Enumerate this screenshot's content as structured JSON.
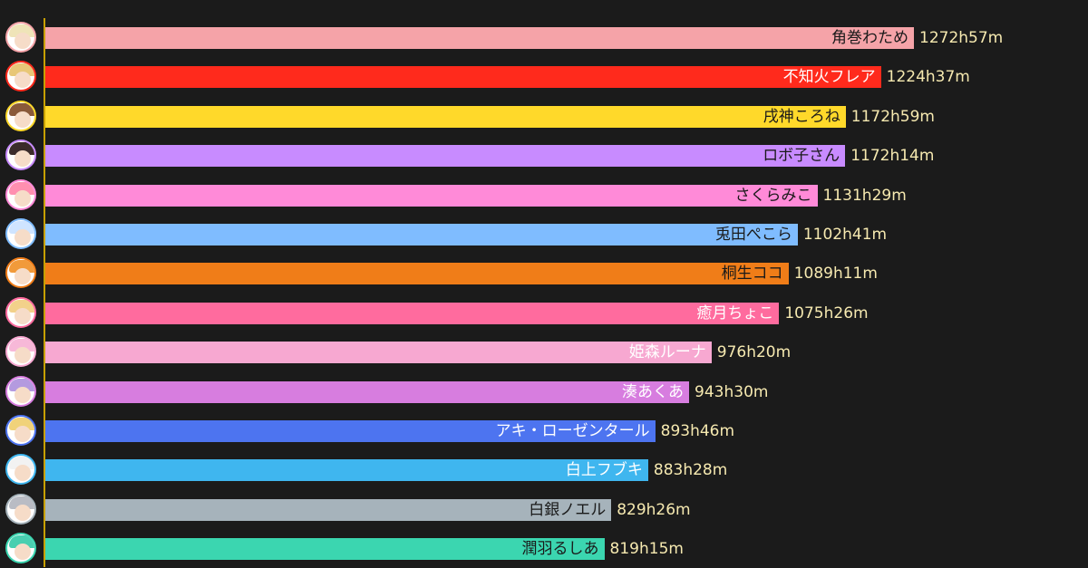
{
  "chart_data": {
    "type": "bar",
    "orientation": "horizontal",
    "value_unit": "hours",
    "items": [
      {
        "name": "角巻わため",
        "value": 1272.95,
        "value_label": "1272h57m",
        "color": "#f5a3a8",
        "label_color": "#1a1a1a",
        "hair": "#efe4b8"
      },
      {
        "name": "不知火フレア",
        "value": 1224.62,
        "value_label": "1224h37m",
        "color": "#ff2a1c",
        "label_color": "#ffffff",
        "hair": "#e8c777"
      },
      {
        "name": "戌神ころね",
        "value": 1172.98,
        "value_label": "1172h59m",
        "color": "#ffd92a",
        "label_color": "#1a1a1a",
        "hair": "#8a5a3a"
      },
      {
        "name": "ロボ子さん",
        "value": 1172.23,
        "value_label": "1172h14m",
        "color": "#c88bff",
        "label_color": "#1a1a1a",
        "hair": "#3b2b2b"
      },
      {
        "name": "さくらみこ",
        "value": 1131.48,
        "value_label": "1131h29m",
        "color": "#ff8ad8",
        "label_color": "#1a1a1a",
        "hair": "#ff8fb0"
      },
      {
        "name": "兎田ぺこら",
        "value": 1102.68,
        "value_label": "1102h41m",
        "color": "#7fbcff",
        "label_color": "#1a1a1a",
        "hair": "#cfe4ff"
      },
      {
        "name": "桐生ココ",
        "value": 1089.18,
        "value_label": "1089h11m",
        "color": "#f07d18",
        "label_color": "#1a1a1a",
        "hair": "#f19a3a"
      },
      {
        "name": "癒月ちょこ",
        "value": 1075.43,
        "value_label": "1075h26m",
        "color": "#ff6b9e",
        "label_color": "#ffffff",
        "hair": "#f2d18a"
      },
      {
        "name": "姫森ルーナ",
        "value": 976.33,
        "value_label": "976h20m",
        "color": "#f7a8d1",
        "label_color": "#ffffff",
        "hair": "#f7b8d8"
      },
      {
        "name": "湊あくあ",
        "value": 943.5,
        "value_label": "943h30m",
        "color": "#d77ddf",
        "label_color": "#ffffff",
        "hair": "#b49adf"
      },
      {
        "name": "アキ・ローゼンタール",
        "value": 893.77,
        "value_label": "893h46m",
        "color": "#4d74f0",
        "label_color": "#ffffff",
        "hair": "#f0d27a"
      },
      {
        "name": "白上フブキ",
        "value": 883.47,
        "value_label": "883h28m",
        "color": "#3fb6ef",
        "label_color": "#ffffff",
        "hair": "#f2f2f2"
      },
      {
        "name": "白銀ノエル",
        "value": 829.43,
        "value_label": "829h26m",
        "color": "#a6b3bb",
        "label_color": "#1a1a1a",
        "hair": "#b9bcc4"
      },
      {
        "name": "潤羽るしあ",
        "value": 819.25,
        "value_label": "819h15m",
        "color": "#3bd6b0",
        "label_color": "#1a1a1a",
        "hair": "#49cfb0"
      }
    ]
  }
}
